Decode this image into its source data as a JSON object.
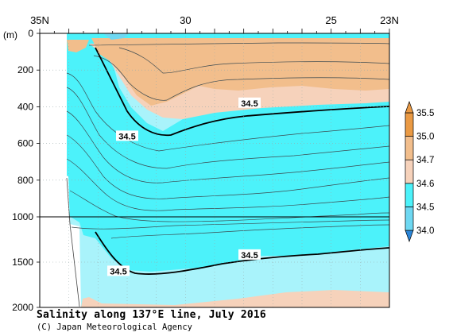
{
  "chart_data": {
    "type": "contour-section",
    "title": "Salinity along 137°E line, July 2016",
    "credit": "(C) Japan Meteorological Agency",
    "x_axis": {
      "tick_labels": [
        {
          "lat": 35,
          "label": "35N"
        },
        {
          "lat": 30,
          "label": "30"
        },
        {
          "lat": 25,
          "label": "25"
        },
        {
          "lat": 23,
          "label": "23N"
        }
      ],
      "range": [
        35,
        23
      ]
    },
    "y_axis": {
      "unit_label": "(m)",
      "upper_ticks": [
        {
          "depth": 0,
          "label": "0"
        },
        {
          "depth": 200,
          "label": "200"
        },
        {
          "depth": 400,
          "label": "400"
        },
        {
          "depth": 600,
          "label": "600"
        },
        {
          "depth": 800,
          "label": "800"
        },
        {
          "depth": 1000,
          "label": "1000"
        }
      ],
      "lower_ticks": [
        {
          "depth": 1500,
          "label": "1500"
        },
        {
          "depth": 2000,
          "label": "2000"
        }
      ],
      "range": [
        0,
        2000
      ],
      "break_depth": 1000
    },
    "colorbar": {
      "levels": [
        "34.0",
        "34.5",
        "34.6",
        "34.7",
        "35.0",
        "35.5"
      ],
      "colors": [
        "#6ed8f2",
        "#4cf2fa",
        "#f6d2bb",
        "#f2be8c",
        "#ea9a44",
        "#2b86d9"
      ]
    },
    "contour_labels": [
      {
        "value": "34.5",
        "lat": 27.8,
        "depth": 380
      },
      {
        "value": "34.5",
        "lat": 32.0,
        "depth": 560
      },
      {
        "value": "34.5",
        "lat": 27.8,
        "depth": 1420
      },
      {
        "value": "34.5",
        "lat": 32.3,
        "depth": 1600
      }
    ],
    "grid": true
  }
}
